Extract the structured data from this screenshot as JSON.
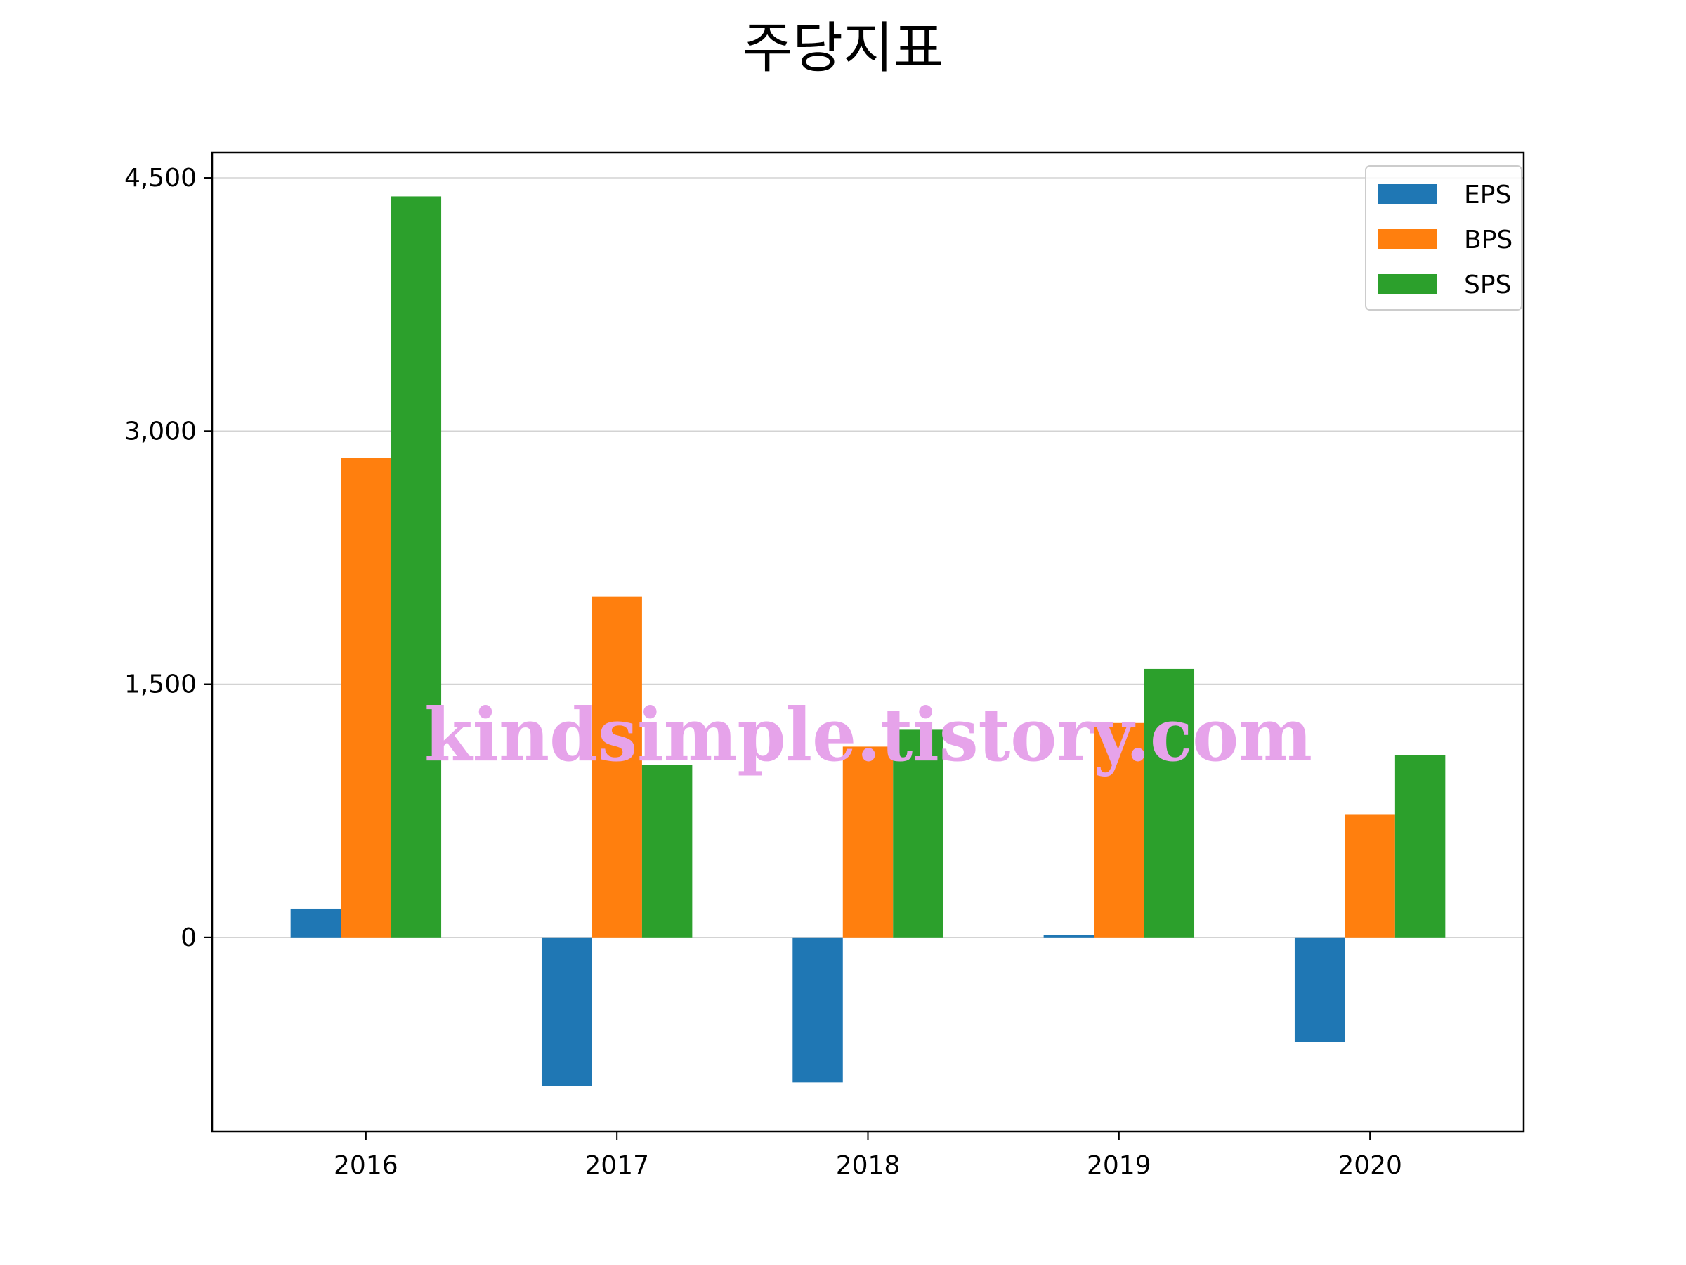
{
  "chart_data": {
    "type": "bar",
    "title": "주당지표",
    "categories": [
      "2016",
      "2017",
      "2018",
      "2019",
      "2020"
    ],
    "series": [
      {
        "name": "EPS",
        "color": "#1f77b4",
        "values": [
          170,
          -880,
          -860,
          12,
          -620
        ]
      },
      {
        "name": "BPS",
        "color": "#ff7f0e",
        "values": [
          2840,
          2020,
          1130,
          1270,
          730
        ]
      },
      {
        "name": "SPS",
        "color": "#2ca02c",
        "values": [
          4390,
          1020,
          1230,
          1590,
          1080
        ]
      }
    ],
    "yticks": [
      0,
      1500,
      3000,
      4500
    ],
    "ytick_labels": [
      "0",
      "1,500",
      "3,000",
      "4,500"
    ],
    "ylim": [
      -1150,
      4650
    ],
    "grid": "horizontal",
    "legend_position": "top-right"
  },
  "watermark": {
    "text": "kindsimple.tistory.com"
  }
}
